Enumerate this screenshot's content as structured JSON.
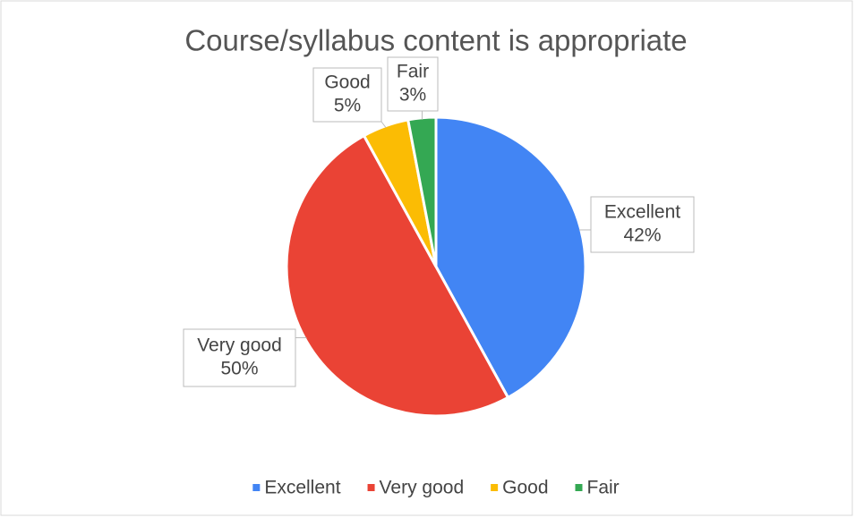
{
  "chart_data": {
    "type": "pie",
    "title": "Course/syllabus content is appropriate",
    "categories": [
      "Excellent",
      "Very good",
      "Good",
      "Fair"
    ],
    "values": [
      42,
      50,
      5,
      3
    ],
    "value_labels": [
      "42%",
      "50%",
      "5%",
      "3%"
    ],
    "colors": [
      "#4285f4",
      "#ea4335",
      "#fbbc04",
      "#34a853"
    ],
    "legend": "bottom"
  }
}
